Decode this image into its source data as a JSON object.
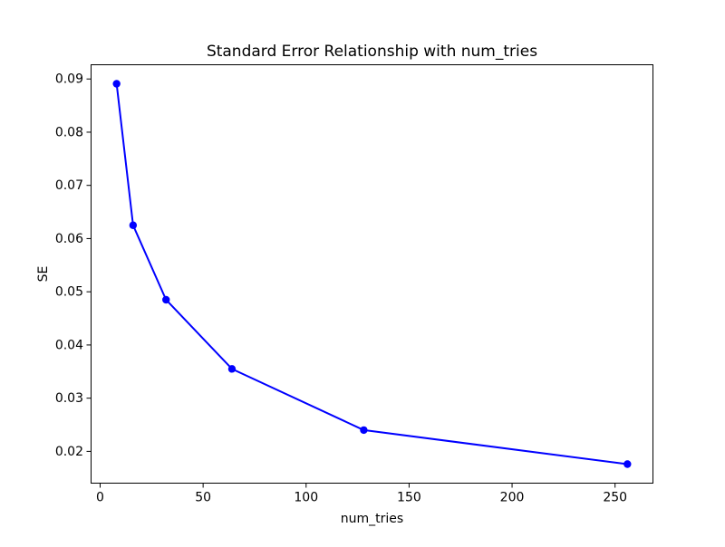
{
  "chart_data": {
    "type": "line",
    "title": "Standard Error Relationship with num_tries",
    "xlabel": "num_tries",
    "ylabel": "SE",
    "x": [
      8,
      16,
      32,
      64,
      128,
      256
    ],
    "y": [
      0.0891,
      0.0625,
      0.0485,
      0.0355,
      0.024,
      0.0176
    ],
    "xlim": [
      -4.4,
      268.4
    ],
    "ylim": [
      0.014025,
      0.092675
    ],
    "xticks": [
      0,
      50,
      100,
      150,
      200,
      250
    ],
    "xtick_labels": [
      "0",
      "50",
      "100",
      "150",
      "200",
      "250"
    ],
    "yticks": [
      0.02,
      0.03,
      0.04,
      0.05,
      0.06,
      0.07,
      0.08,
      0.09
    ],
    "ytick_labels": [
      "0.02",
      "0.03",
      "0.04",
      "0.05",
      "0.06",
      "0.07",
      "0.08",
      "0.09"
    ],
    "line_color": "#0000ff",
    "marker": "circle",
    "marker_size": 4.2,
    "grid": false,
    "legend_position": "none",
    "background_color": "#ffffff",
    "spine_color": "#000000"
  }
}
